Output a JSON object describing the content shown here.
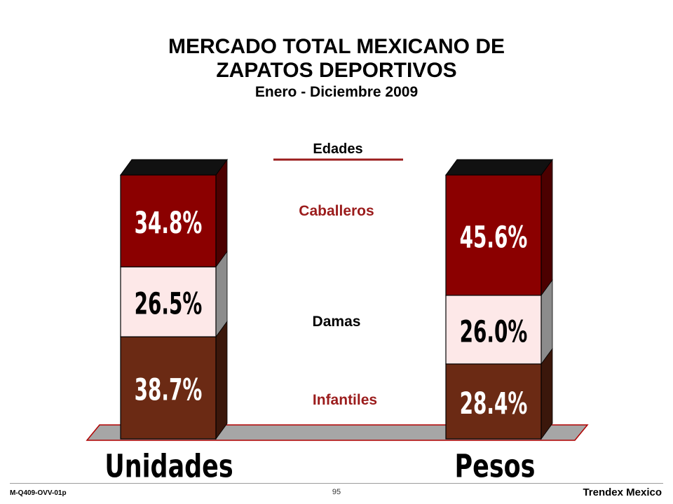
{
  "title": {
    "line1": "MERCADO TOTAL MEXICANO DE",
    "line2": "ZAPATOS DEPORTIVOS",
    "subtitle": "Enero - Diciembre 2009"
  },
  "footer": {
    "code": "M-Q409-OVV-01p",
    "page": "95",
    "brand": "Trendex Mexico"
  },
  "colors": {
    "caballeros": "#8b0000",
    "damas": "#fde8e8",
    "infantiles": "#6b2a14",
    "legend_caballeros_text": "#9b1c1c",
    "legend_rule": "#9b1c1c",
    "base": "#a6a6a6"
  },
  "chart_data": {
    "type": "bar",
    "stacked": true,
    "legend_title": "Edades",
    "categories": [
      "Unidades",
      "Pesos"
    ],
    "series": [
      {
        "name": "Infantiles",
        "values": [
          38.7,
          28.4
        ],
        "labels": [
          "38.7%",
          "28.4%"
        ]
      },
      {
        "name": "Damas",
        "values": [
          26.5,
          26.0
        ],
        "labels": [
          "26.5%",
          "26.0%"
        ]
      },
      {
        "name": "Caballeros",
        "values": [
          34.8,
          45.6
        ],
        "labels": [
          "34.8%",
          "45.6%"
        ]
      }
    ]
  }
}
